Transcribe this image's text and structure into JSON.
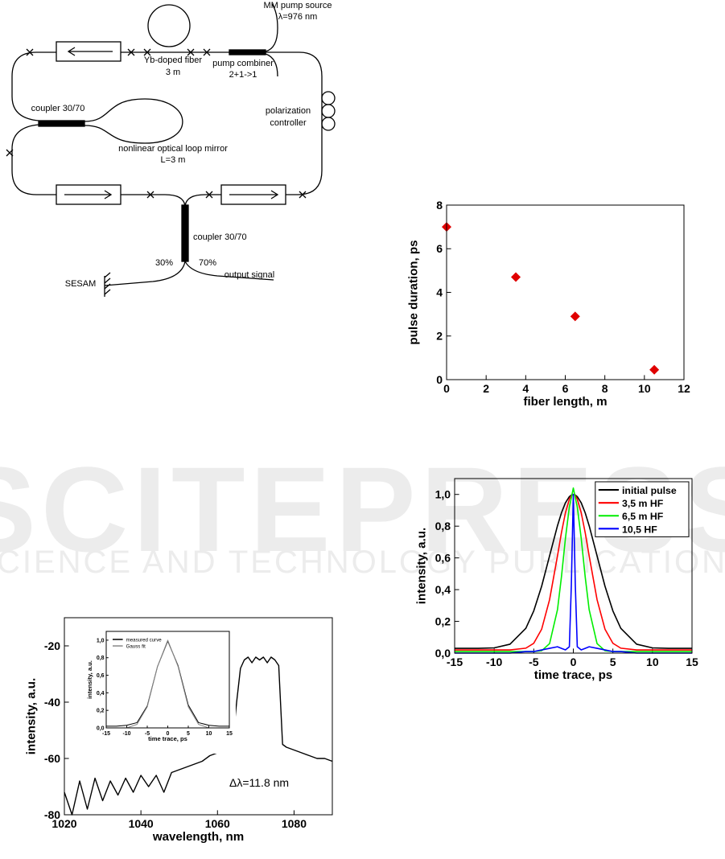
{
  "diagram": {
    "labels": [
      "MM pump source",
      "λ=976 nm",
      "Yb-doped fiber",
      "3 m",
      "pump combiner",
      "2+1->1",
      "polarization",
      "controller",
      "coupler 30/70",
      "nonlinear optical loop mirror",
      "L=3 m",
      "coupler 30/70",
      "30%",
      "70%",
      "SESAM",
      "output signal"
    ]
  },
  "watermark": {
    "title": "SCITEPRESS",
    "subtitle": "SCIENCE AND TECHNOLOGY PUBLICATIONS"
  },
  "chart_data": [
    {
      "type": "scatter",
      "x_label": "fiber length, m",
      "y_label": "pulse duration, ps",
      "x": [
        0,
        3.5,
        6.5,
        10.5
      ],
      "values": [
        7,
        4.7,
        2.9,
        0.45
      ],
      "color": "#e00000",
      "xlim": [
        0,
        12
      ],
      "xticks": [
        0,
        2,
        4,
        6,
        8,
        10,
        12
      ],
      "ylim": [
        0,
        8
      ],
      "yticks": [
        0,
        2,
        4,
        6,
        8
      ]
    },
    {
      "type": "line",
      "x_label": "time trace, ps",
      "y_label": "intensity, a.u.",
      "x": [
        -15,
        -12,
        -10,
        -8,
        -6,
        -5,
        -4,
        -3,
        -2,
        -1.5,
        -1,
        -0.5,
        -0.25,
        0,
        0.25,
        0.5,
        1,
        1.5,
        2,
        3,
        4,
        5,
        6,
        8,
        10,
        12,
        15
      ],
      "series": [
        {
          "name": "initial pulse",
          "color": "#000000",
          "values": [
            0.03,
            0.03,
            0.033,
            0.056,
            0.156,
            0.266,
            0.422,
            0.613,
            0.803,
            0.884,
            0.947,
            0.986,
            0.996,
            1.0,
            0.996,
            0.986,
            0.947,
            0.884,
            0.803,
            0.613,
            0.422,
            0.266,
            0.156,
            0.056,
            0.033,
            0.03,
            0.03
          ]
        },
        {
          "name": "3,5 m HF",
          "color": "#ff0000",
          "values": [
            0.02,
            0.02,
            0.02,
            0.02,
            0.031,
            0.062,
            0.151,
            0.337,
            0.613,
            0.759,
            0.884,
            0.97,
            0.992,
            1.0,
            0.992,
            0.97,
            0.884,
            0.759,
            0.613,
            0.337,
            0.151,
            0.062,
            0.031,
            0.02,
            0.02,
            0.02,
            0.02
          ]
        },
        {
          "name": "6,5 m HF",
          "color": "#00ee00",
          "values": [
            0.01,
            0.01,
            0.01,
            0.01,
            0.01,
            0.01,
            0.015,
            0.06,
            0.274,
            0.481,
            0.722,
            0.922,
            0.979,
            1.04,
            0.979,
            0.922,
            0.722,
            0.481,
            0.274,
            0.06,
            0.015,
            0.01,
            0.01,
            0.01,
            0.01,
            0.01,
            0.01
          ]
        },
        {
          "name": "10,5 HF",
          "color": "#0000ff",
          "values": [
            0,
            0,
            0,
            0,
            0.01,
            0.01,
            0.02,
            0.03,
            0.04,
            0.03,
            0.02,
            0.04,
            0.43,
            1.0,
            0.43,
            0.04,
            0.02,
            0.03,
            0.04,
            0.03,
            0.02,
            0.01,
            0.01,
            0,
            0,
            0,
            0
          ]
        }
      ],
      "xlim": [
        -15,
        15
      ],
      "xticks": [
        -15,
        -10,
        -5,
        0,
        5,
        10,
        15
      ],
      "ylim": [
        0,
        1.1
      ],
      "yticks": [
        {
          "value": 0,
          "label": "0,0"
        },
        {
          "value": 0.2,
          "label": "0,2"
        },
        {
          "value": 0.4,
          "label": "0,4"
        },
        {
          "value": 0.6,
          "label": "0,6"
        },
        {
          "value": 0.8,
          "label": "0,8"
        },
        {
          "value": 1.0,
          "label": "1,0"
        }
      ],
      "legend": "upper right"
    },
    {
      "type": "line",
      "x_label": "wavelength, nm",
      "y_label": "intensity, a.u.",
      "annotation": "Δλ=11.8 nm",
      "x": [
        1020,
        1022,
        1024,
        1026,
        1028,
        1030,
        1032,
        1034,
        1036,
        1038,
        1040,
        1042,
        1044,
        1046,
        1048,
        1050,
        1052,
        1054,
        1056,
        1058,
        1060,
        1062,
        1064,
        1065,
        1066,
        1067,
        1068,
        1069,
        1070,
        1071,
        1072,
        1073,
        1074,
        1075,
        1076,
        1077,
        1078,
        1080,
        1082,
        1084,
        1086,
        1088,
        1090
      ],
      "values": [
        -72,
        -80,
        -68,
        -78,
        -67,
        -75,
        -68,
        -73,
        -67,
        -72,
        -66,
        -70,
        -66,
        -72,
        -65,
        -64,
        -63,
        -62,
        -61,
        -59,
        -58,
        -57,
        -54,
        -40,
        -28,
        -25,
        -24,
        -26,
        -24,
        -25,
        -24,
        -26,
        -24,
        -25,
        -27,
        -55,
        -56,
        -57,
        -58,
        -59,
        -60,
        -60,
        -61
      ],
      "color": "#000000",
      "xlim": [
        1020,
        1090
      ],
      "xticks": [
        1020,
        1040,
        1060,
        1080
      ],
      "ylim": [
        -80,
        -10
      ],
      "yticks": [
        -80,
        -60,
        -40,
        -20
      ]
    },
    {
      "type": "line",
      "x_label": "time trace, ps",
      "y_label": "intensity, a.u.",
      "x": [
        -15,
        -12.5,
        -10,
        -7.5,
        -5,
        -2.5,
        0,
        2.5,
        5,
        7.5,
        10,
        12.5,
        15
      ],
      "series": [
        {
          "name": "measured curve",
          "color": "#000000",
          "values": [
            0.02,
            0.02,
            0.03,
            0.06,
            0.25,
            0.7,
            0.99,
            0.71,
            0.26,
            0.06,
            0.03,
            0.02,
            0.02
          ]
        },
        {
          "name": "Gauss fit",
          "color": "#888888",
          "values": [
            0,
            0,
            0,
            0.04,
            0.24,
            0.7,
            1.0,
            0.7,
            0.24,
            0.04,
            0,
            0,
            0
          ]
        }
      ],
      "xlim": [
        -15,
        15
      ],
      "xticks": [
        -15,
        -10,
        -5,
        0,
        5,
        10,
        15
      ],
      "ylim": [
        0,
        1.1
      ],
      "yticks": [
        {
          "value": 0,
          "label": "0,0"
        },
        {
          "value": 0.2,
          "label": "0,2"
        },
        {
          "value": 0.4,
          "label": "0,4"
        },
        {
          "value": 0.6,
          "label": "0,6"
        },
        {
          "value": 0.8,
          "label": "0,8"
        },
        {
          "value": 1.0,
          "label": "1,0"
        }
      ],
      "legend": "upper left"
    }
  ]
}
